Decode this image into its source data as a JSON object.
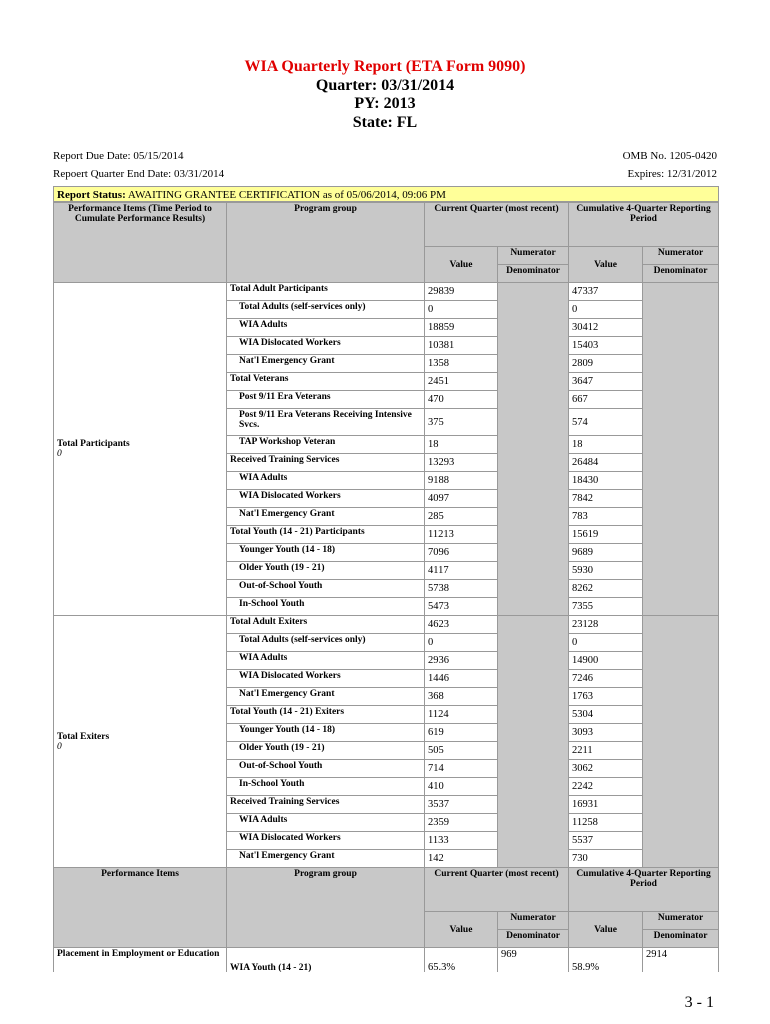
{
  "header": {
    "title": "WIA Quarterly Report (ETA Form 9090)",
    "quarter": "Quarter: 03/31/2014",
    "py": "PY: 2013",
    "state": "State: FL"
  },
  "info": {
    "due_date": "Report Due Date: 05/15/2014",
    "quarter_end": "Repoert Quarter End Date: 03/31/2014",
    "omb": "OMB No. 1205-0420",
    "expires": "Expires: 12/31/2012"
  },
  "status": {
    "label": "Report Status:",
    "text": "AWAITING GRANTEE CERTIFICATION as of  05/06/2014, 09:06 PM"
  },
  "columns": {
    "performance_items": "Performance Items (Time Period to Cumulate Performance Results)",
    "program_group": "Program group",
    "current_quarter": "Current Quarter (most recent)",
    "cumulative": "Cumulative 4-Quarter Reporting Period",
    "value": "Value",
    "numerator": "Numerator",
    "denominator": "Denominator"
  },
  "columns2": {
    "performance_items": "Performance Items"
  },
  "sections": [
    {
      "label": "Total Participants",
      "sub": "0",
      "rows": [
        {
          "group": "Total Adult Participants",
          "value": 29839,
          "cum_value": 47337,
          "indent": false
        },
        {
          "group": "Total Adults (self-services only)",
          "value": 0,
          "cum_value": 0,
          "indent": true
        },
        {
          "group": "WIA Adults",
          "value": 18859,
          "cum_value": 30412,
          "indent": true
        },
        {
          "group": "WIA Dislocated Workers",
          "value": 10381,
          "cum_value": 15403,
          "indent": true
        },
        {
          "group": "Nat'l Emergency Grant",
          "value": 1358,
          "cum_value": 2809,
          "indent": true
        },
        {
          "group": "Total Veterans",
          "value": 2451,
          "cum_value": 3647,
          "indent": false
        },
        {
          "group": "Post 9/11 Era Veterans",
          "value": 470,
          "cum_value": 667,
          "indent": true
        },
        {
          "group": "Post 9/11 Era Veterans Receiving Intensive Svcs.",
          "value": 375,
          "cum_value": 574,
          "indent": true
        },
        {
          "group": "TAP Workshop Veteran",
          "value": 18,
          "cum_value": 18,
          "indent": true
        },
        {
          "group": "Received Training Services",
          "value": 13293,
          "cum_value": 26484,
          "indent": false
        },
        {
          "group": "WIA Adults",
          "value": 9188,
          "cum_value": 18430,
          "indent": true
        },
        {
          "group": "WIA Dislocated Workers",
          "value": 4097,
          "cum_value": 7842,
          "indent": true
        },
        {
          "group": "Nat'l Emergency Grant",
          "value": 285,
          "cum_value": 783,
          "indent": true
        },
        {
          "group": "Total Youth (14 - 21) Participants",
          "value": 11213,
          "cum_value": 15619,
          "indent": false
        },
        {
          "group": "Younger Youth (14 - 18)",
          "value": 7096,
          "cum_value": 9689,
          "indent": true
        },
        {
          "group": "Older Youth (19 - 21)",
          "value": 4117,
          "cum_value": 5930,
          "indent": true
        },
        {
          "group": "Out-of-School Youth",
          "value": 5738,
          "cum_value": 8262,
          "indent": true
        },
        {
          "group": "In-School Youth",
          "value": 5473,
          "cum_value": 7355,
          "indent": true
        }
      ]
    },
    {
      "label": "Total Exiters",
      "sub": "0",
      "rows": [
        {
          "group": "Total Adult Exiters",
          "value": 4623,
          "cum_value": 23128,
          "indent": false
        },
        {
          "group": "Total Adults (self-services only)",
          "value": 0,
          "cum_value": 0,
          "indent": true
        },
        {
          "group": "WIA Adults",
          "value": 2936,
          "cum_value": 14900,
          "indent": true
        },
        {
          "group": "WIA Dislocated Workers",
          "value": 1446,
          "cum_value": 7246,
          "indent": true
        },
        {
          "group": "Nat'l Emergency Grant",
          "value": 368,
          "cum_value": 1763,
          "indent": true
        },
        {
          "group": "Total Youth (14 - 21) Exiters",
          "value": 1124,
          "cum_value": 5304,
          "indent": false
        },
        {
          "group": "Younger Youth (14 - 18)",
          "value": 619,
          "cum_value": 3093,
          "indent": true
        },
        {
          "group": "Older Youth (19 - 21)",
          "value": 505,
          "cum_value": 2211,
          "indent": true
        },
        {
          "group": "Out-of-School Youth",
          "value": 714,
          "cum_value": 3062,
          "indent": true
        },
        {
          "group": "In-School Youth",
          "value": 410,
          "cum_value": 2242,
          "indent": true
        },
        {
          "group": "Received Training Services",
          "value": 3537,
          "cum_value": 16931,
          "indent": false
        },
        {
          "group": "WIA Adults",
          "value": 2359,
          "cum_value": 11258,
          "indent": true
        },
        {
          "group": "WIA Dislocated Workers",
          "value": 1133,
          "cum_value": 5537,
          "indent": true
        },
        {
          "group": "Nat'l Emergency Grant",
          "value": 142,
          "cum_value": 730,
          "indent": true
        }
      ]
    }
  ],
  "last_row": {
    "item": "Placement in Employment or Education",
    "group": "WIA Youth (14 - 21)",
    "value": "65.3%",
    "numerator": 969,
    "cum_value": "58.9%",
    "cum_numerator": 2914
  },
  "page_number": "3 - 1"
}
